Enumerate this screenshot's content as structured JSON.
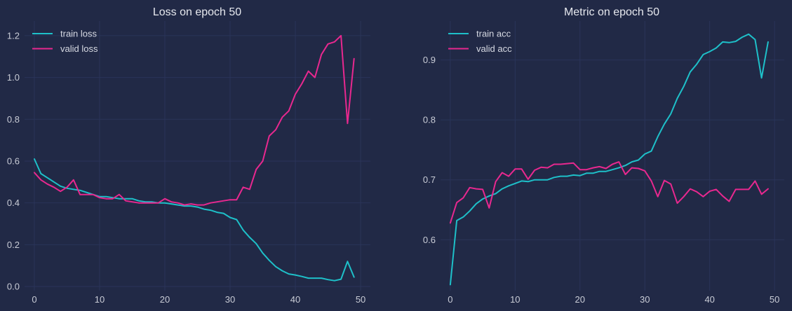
{
  "colors": {
    "background": "#212946",
    "grid": "#2a3459",
    "train": "#1ec0c9",
    "valid": "#e8288f"
  },
  "chart_data": [
    {
      "type": "line",
      "title": "Loss on epoch 50",
      "xlabel": "",
      "ylabel": "",
      "xlim": [
        -1.5,
        51.5
      ],
      "ylim": [
        -0.02,
        1.27
      ],
      "xticks": [
        0,
        10,
        20,
        30,
        40,
        50
      ],
      "yticks": [
        0.0,
        0.2,
        0.4,
        0.6,
        0.8,
        1.0,
        1.2
      ],
      "ytick_labels": [
        "0.0",
        "0.2",
        "0.4",
        "0.6",
        "0.8",
        "1.0",
        "1.2"
      ],
      "grid": true,
      "legend_position": "top-left",
      "series": [
        {
          "name": "train loss",
          "color": "#1ec0c9",
          "values": [
            0.61,
            0.54,
            0.52,
            0.5,
            0.48,
            0.47,
            0.465,
            0.46,
            0.45,
            0.44,
            0.43,
            0.43,
            0.425,
            0.42,
            0.42,
            0.42,
            0.41,
            0.405,
            0.405,
            0.4,
            0.4,
            0.395,
            0.39,
            0.385,
            0.385,
            0.38,
            0.37,
            0.365,
            0.355,
            0.35,
            0.33,
            0.32,
            0.27,
            0.235,
            0.205,
            0.16,
            0.125,
            0.095,
            0.075,
            0.06,
            0.055,
            0.048,
            0.04,
            0.04,
            0.04,
            0.033,
            0.028,
            0.035,
            0.12,
            0.045
          ]
        },
        {
          "name": "valid loss",
          "color": "#e8288f",
          "values": [
            0.545,
            0.51,
            0.49,
            0.475,
            0.455,
            0.475,
            0.51,
            0.44,
            0.44,
            0.44,
            0.425,
            0.42,
            0.42,
            0.44,
            0.41,
            0.405,
            0.4,
            0.4,
            0.4,
            0.4,
            0.42,
            0.405,
            0.4,
            0.39,
            0.395,
            0.39,
            0.39,
            0.4,
            0.405,
            0.41,
            0.415,
            0.415,
            0.475,
            0.465,
            0.56,
            0.6,
            0.72,
            0.75,
            0.81,
            0.84,
            0.92,
            0.97,
            1.03,
            1.0,
            1.11,
            1.16,
            1.17,
            1.2,
            0.78,
            1.09
          ]
        }
      ]
    },
    {
      "type": "line",
      "title": "Metric on epoch 50",
      "xlabel": "",
      "ylabel": "",
      "xlim": [
        -1.5,
        51.5
      ],
      "ylim": [
        0.515,
        0.965
      ],
      "xticks": [
        0,
        10,
        20,
        30,
        40,
        50
      ],
      "yticks": [
        0.6,
        0.7,
        0.8,
        0.9
      ],
      "ytick_labels": [
        "0.6",
        "0.7",
        "0.8",
        "0.9"
      ],
      "grid": true,
      "legend_position": "top-left",
      "series": [
        {
          "name": "train acc",
          "color": "#1ec0c9",
          "values": [
            0.525,
            0.632,
            0.638,
            0.648,
            0.66,
            0.668,
            0.673,
            0.677,
            0.685,
            0.69,
            0.694,
            0.698,
            0.697,
            0.7,
            0.7,
            0.7,
            0.704,
            0.706,
            0.706,
            0.708,
            0.707,
            0.711,
            0.711,
            0.714,
            0.714,
            0.717,
            0.72,
            0.724,
            0.73,
            0.733,
            0.743,
            0.748,
            0.772,
            0.793,
            0.81,
            0.836,
            0.856,
            0.88,
            0.893,
            0.909,
            0.914,
            0.92,
            0.93,
            0.929,
            0.931,
            0.938,
            0.943,
            0.934,
            0.87,
            0.93
          ]
        },
        {
          "name": "valid acc",
          "color": "#e8288f",
          "values": [
            0.628,
            0.662,
            0.67,
            0.687,
            0.685,
            0.684,
            0.653,
            0.697,
            0.712,
            0.706,
            0.718,
            0.718,
            0.701,
            0.716,
            0.721,
            0.72,
            0.726,
            0.726,
            0.727,
            0.728,
            0.717,
            0.717,
            0.72,
            0.722,
            0.719,
            0.726,
            0.73,
            0.709,
            0.72,
            0.719,
            0.715,
            0.698,
            0.672,
            0.699,
            0.693,
            0.661,
            0.672,
            0.685,
            0.68,
            0.672,
            0.681,
            0.684,
            0.673,
            0.664,
            0.684,
            0.684,
            0.684,
            0.698,
            0.676,
            0.685
          ]
        }
      ]
    }
  ]
}
